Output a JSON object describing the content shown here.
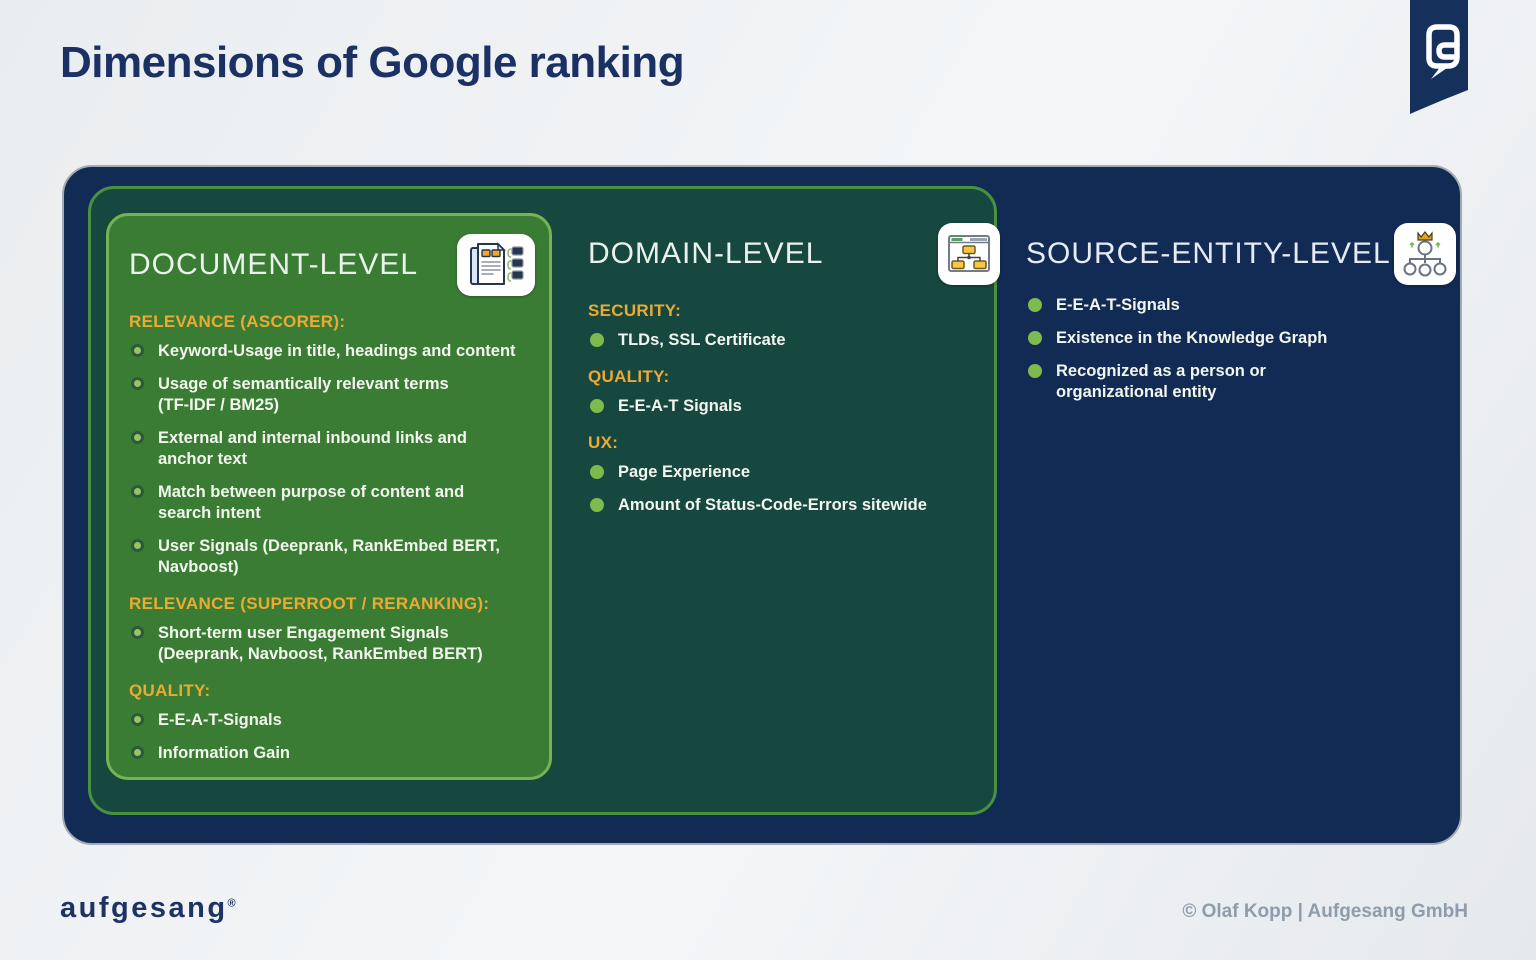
{
  "page": {
    "title": "Dimensions of Google ranking",
    "footer_logo_text": "aufgesang",
    "footer_logo_mark": "®",
    "copyright": "© Olaf Kopp | Aufgesang GmbH"
  },
  "colors": {
    "title_navy": "#1b3164",
    "stage_navy": "#122b55",
    "domain_teal": "#174840",
    "domain_border_green": "#48923f",
    "document_green": "#3b7c34",
    "document_border_green": "#78b254",
    "heading_orange": "#ecaa33",
    "bullet_green": "#7dbb4e",
    "text_white": "#f3f6ee",
    "copyright_gray": "#8e9cab"
  },
  "icons": {
    "brand": "speech-bubble-a-logo",
    "document": "stacked-documents-icon",
    "domain": "website-sitemap-icon",
    "source_entity": "entity-network-crown-icon"
  },
  "levels": [
    {
      "id": "document",
      "title": "DOCUMENT-LEVEL",
      "groups": [
        {
          "heading": "RELEVANCE (ASCORER):",
          "items": [
            "Keyword-Usage in title, headings and content",
            "Usage of semantically relevant terms\n(TF-IDF / BM25)",
            "External and internal inbound links and\nanchor text",
            "Match between purpose of content and\nsearch intent",
            "User Signals (Deeprank, RankEmbed BERT,\nNavboost)"
          ]
        },
        {
          "heading": "RELEVANCE (SUPERROOT / RERANKING):",
          "items": [
            "Short-term user Engagement Signals\n(Deeprank, Navboost, RankEmbed BERT)"
          ]
        },
        {
          "heading": "QUALITY:",
          "items": [
            "E-E-A-T-Signals",
            "Information Gain"
          ]
        }
      ]
    },
    {
      "id": "domain",
      "title": "DOMAIN-LEVEL",
      "groups": [
        {
          "heading": "SECURITY:",
          "items": [
            "TLDs, SSL Certificate"
          ]
        },
        {
          "heading": "QUALITY:",
          "items": [
            "E-E-A-T Signals"
          ]
        },
        {
          "heading": "UX:",
          "items": [
            "Page Experience",
            "Amount of Status-Code-Errors sitewide"
          ]
        }
      ]
    },
    {
      "id": "source-entity",
      "title": "SOURCE-ENTITY-LEVEL",
      "groups": [
        {
          "heading": "",
          "items": [
            "E-E-A-T-Signals",
            "Existence in the Knowledge Graph",
            "Recognized as a person or\norganizational entity"
          ]
        }
      ]
    }
  ]
}
